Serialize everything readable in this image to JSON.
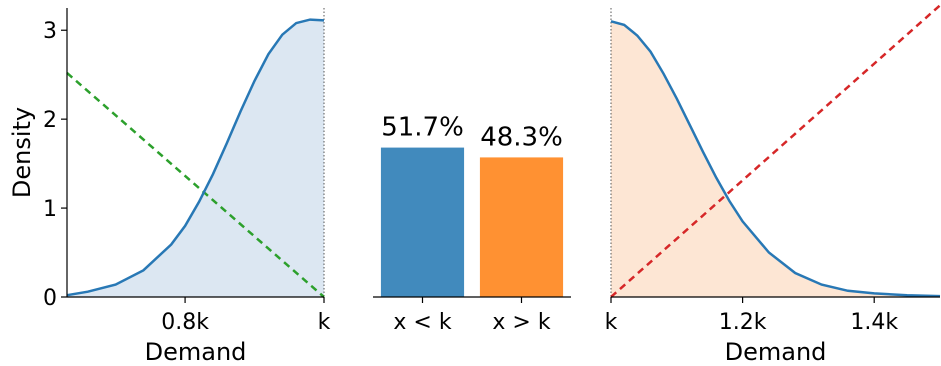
{
  "chart_data": [
    {
      "type": "area",
      "panel": "left",
      "ylabel": "Density",
      "xlabel": "Demand",
      "xlim": [
        0.63,
        1.0
      ],
      "ylim": [
        0,
        3.25
      ],
      "x_ticks": [
        {
          "value": 0.8,
          "label": "0.8k"
        },
        {
          "value": 1.0,
          "label": "k"
        }
      ],
      "y_ticks": [
        {
          "value": 0,
          "label": "0"
        },
        {
          "value": 1,
          "label": "1"
        },
        {
          "value": 2,
          "label": "2"
        },
        {
          "value": 3,
          "label": "3"
        }
      ],
      "density_curve": {
        "x": [
          0.63,
          0.66,
          0.7,
          0.74,
          0.78,
          0.8,
          0.82,
          0.84,
          0.86,
          0.88,
          0.9,
          0.92,
          0.94,
          0.96,
          0.98,
          1.0
        ],
        "y": [
          0.02,
          0.06,
          0.14,
          0.3,
          0.59,
          0.8,
          1.07,
          1.38,
          1.73,
          2.09,
          2.43,
          2.73,
          2.95,
          3.08,
          3.12,
          3.11
        ],
        "color": "#2878b5",
        "fill": "#dce7f2"
      },
      "reference_line": {
        "x": [
          0.63,
          1.0
        ],
        "y": [
          2.52,
          0.0
        ],
        "color": "#2ca02c",
        "style": "dashed"
      },
      "vline": {
        "x": 1.0,
        "style": "dotted",
        "color": "#555555"
      }
    },
    {
      "type": "bar",
      "panel": "middle",
      "categories": [
        "x < k",
        "x > k"
      ],
      "values": [
        51.7,
        48.3
      ],
      "labels": [
        "51.7%",
        "48.3%"
      ],
      "colors": [
        "#418abd",
        "#ff9132"
      ],
      "ylim": [
        0,
        100
      ]
    },
    {
      "type": "area",
      "panel": "right",
      "xlabel": "Demand",
      "xlim": [
        1.0,
        1.5
      ],
      "ylim": [
        0,
        3.25
      ],
      "x_ticks": [
        {
          "value": 1.0,
          "label": "k"
        },
        {
          "value": 1.2,
          "label": "1.2k"
        },
        {
          "value": 1.4,
          "label": "1.4k"
        }
      ],
      "density_curve": {
        "x": [
          1.0,
          1.02,
          1.04,
          1.06,
          1.08,
          1.1,
          1.12,
          1.14,
          1.16,
          1.18,
          1.2,
          1.24,
          1.28,
          1.32,
          1.36,
          1.4,
          1.45,
          1.5
        ],
        "y": [
          3.1,
          3.06,
          2.94,
          2.76,
          2.51,
          2.23,
          1.93,
          1.63,
          1.34,
          1.08,
          0.85,
          0.5,
          0.27,
          0.14,
          0.07,
          0.04,
          0.02,
          0.01
        ],
        "color": "#2878b5",
        "fill": "#fde6d4"
      },
      "reference_line": {
        "x": [
          1.0,
          1.5
        ],
        "y": [
          0.0,
          3.28
        ],
        "color": "#d62728",
        "style": "dashed"
      },
      "vline": {
        "x": 1.0,
        "style": "dotted",
        "color": "#555555"
      }
    }
  ]
}
